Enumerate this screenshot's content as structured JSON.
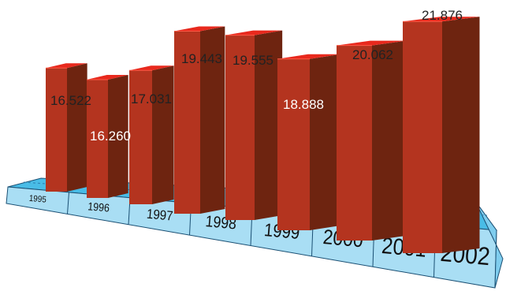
{
  "chart_data": {
    "type": "bar",
    "categories": [
      "1995",
      "1996",
      "1997",
      "1998",
      "1999",
      "2000",
      "2001",
      "2002"
    ],
    "values": [
      16.522,
      16.26,
      17.031,
      19.443,
      19.555,
      18.888,
      20.062,
      21.876
    ],
    "value_labels": [
      "16.522",
      "16.260",
      "17.031",
      "19.443",
      "19.555",
      "18.888",
      "20.062",
      "21.876"
    ],
    "title": "",
    "xlabel": "",
    "ylabel": "",
    "style": "3d-bars-on-perspective-base",
    "colors": {
      "bar_front": "#b4341f",
      "bar_side": "#6e2410",
      "bar_top": "#e8291d",
      "base_top": "#49bce6",
      "base_front": "#a9def4",
      "base_edge": "#1a4f73",
      "label_text": "#222222"
    }
  }
}
